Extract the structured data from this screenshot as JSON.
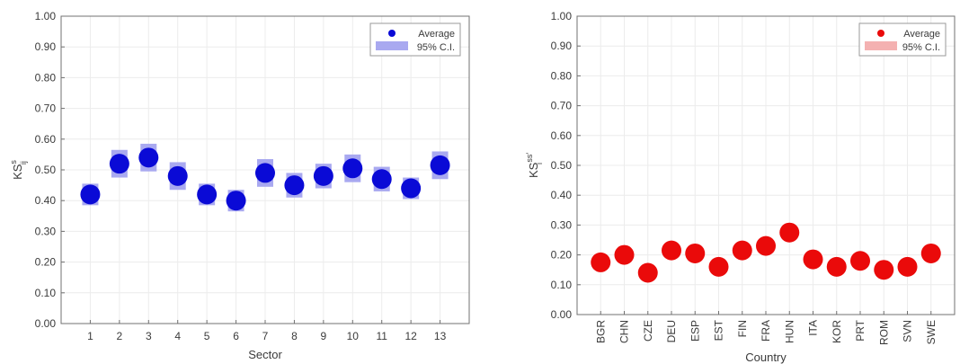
{
  "colors": {
    "left_marker": "#0a0ad6",
    "left_ci": "#a9a9f0",
    "right_marker": "#ea0a0a",
    "right_ci": "#f4b1b1",
    "grid": "#ececec",
    "axis": "#707070",
    "text": "#3a3a3a"
  },
  "chart_data": [
    {
      "type": "scatter",
      "title": "",
      "xlabel": "Sector",
      "ylabel": "KS",
      "ylabel_sup": "s",
      "ylabel_sub": "ij",
      "ylabel_prime": "",
      "ylim": [
        0,
        1
      ],
      "yticks": [
        "0.00",
        "0.10",
        "0.20",
        "0.30",
        "0.40",
        "0.50",
        "0.60",
        "0.70",
        "0.80",
        "0.90",
        "1.00"
      ],
      "grid": true,
      "legend_position": "top-right",
      "rotate_xticks": false,
      "categories": [
        "1",
        "2",
        "3",
        "4",
        "5",
        "6",
        "7",
        "8",
        "9",
        "10",
        "11",
        "12",
        "13"
      ],
      "series": [
        {
          "name": "Average",
          "kind": "marker",
          "values": [
            0.42,
            0.52,
            0.54,
            0.48,
            0.42,
            0.4,
            0.49,
            0.45,
            0.48,
            0.505,
            0.47,
            0.44,
            0.515
          ]
        },
        {
          "name": "95% C.I.",
          "kind": "interval",
          "low": [
            0.385,
            0.475,
            0.495,
            0.435,
            0.385,
            0.365,
            0.445,
            0.41,
            0.44,
            0.46,
            0.43,
            0.405,
            0.47
          ],
          "high": [
            0.455,
            0.565,
            0.585,
            0.525,
            0.455,
            0.435,
            0.535,
            0.49,
            0.52,
            0.55,
            0.51,
            0.475,
            0.56
          ]
        }
      ]
    },
    {
      "type": "scatter",
      "title": "",
      "xlabel": "Country",
      "ylabel": "KS",
      "ylabel_sup": "ss",
      "ylabel_sub": "i",
      "ylabel_prime": "′",
      "ylim": [
        0,
        1
      ],
      "yticks": [
        "0.00",
        "0.10",
        "0.20",
        "0.30",
        "0.40",
        "0.50",
        "0.60",
        "0.70",
        "0.80",
        "0.90",
        "1.00"
      ],
      "grid": true,
      "legend_position": "top-right",
      "rotate_xticks": true,
      "categories": [
        "BGR",
        "CHN",
        "CZE",
        "DEU",
        "ESP",
        "EST",
        "FIN",
        "FRA",
        "HUN",
        "ITA",
        "KOR",
        "PRT",
        "ROM",
        "SVN",
        "SWE"
      ],
      "series": [
        {
          "name": "Average",
          "kind": "marker",
          "values": [
            0.175,
            0.2,
            0.14,
            0.215,
            0.205,
            0.16,
            0.215,
            0.23,
            0.275,
            0.185,
            0.16,
            0.18,
            0.15,
            0.16,
            0.205
          ]
        },
        {
          "name": "95% C.I.",
          "kind": "interval",
          "low": [
            0.165,
            0.19,
            0.13,
            0.205,
            0.195,
            0.15,
            0.205,
            0.22,
            0.255,
            0.175,
            0.15,
            0.17,
            0.14,
            0.15,
            0.195
          ],
          "high": [
            0.185,
            0.21,
            0.15,
            0.225,
            0.215,
            0.17,
            0.225,
            0.24,
            0.295,
            0.195,
            0.17,
            0.19,
            0.16,
            0.17,
            0.215
          ]
        }
      ]
    }
  ]
}
